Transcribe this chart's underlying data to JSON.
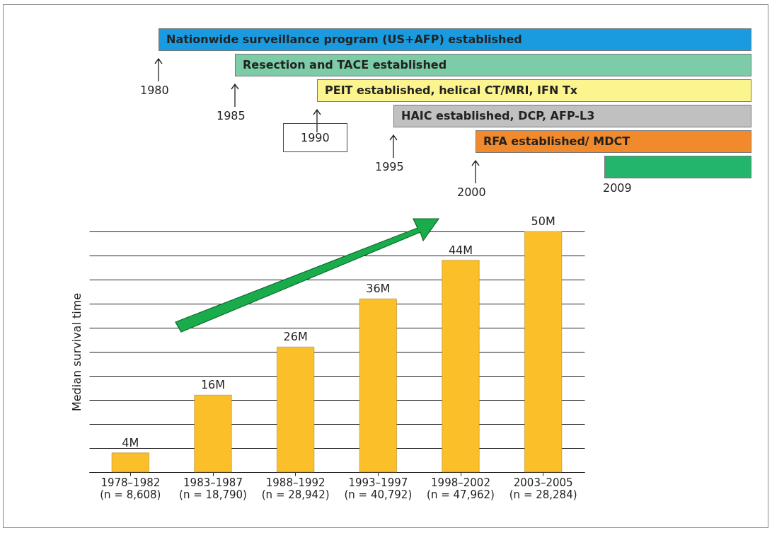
{
  "chart_data": {
    "type": "bar",
    "ylabel": "Median survival time",
    "categories": [
      "1978–1982\n(n = 8,608)",
      "1983–1987\n(n = 18,790)",
      "1988–1992\n(n = 28,942)",
      "1993–1997\n(n = 40,792)",
      "1998–2002\n(n = 47,962)",
      "2003–2005\n(n = 28,284)"
    ],
    "values": [
      4,
      16,
      26,
      36,
      44,
      50
    ],
    "value_labels": [
      "4M",
      "16M",
      "26M",
      "36M",
      "44M",
      "50M"
    ],
    "color": "#fbbf2a",
    "tick_labels": "x",
    "grid": "y",
    "annotations": [
      "1980",
      "Nationwide surveillance program (US+AFP) established",
      "1985",
      "Resection and TACE established",
      "1990",
      "PEIT established, helical CT/MRI, IFN Tx",
      "1995",
      "HAIC established, DCP, AFP-L3",
      "2000",
      "RFA established/ MDCT",
      "2009"
    ]
  }
}
